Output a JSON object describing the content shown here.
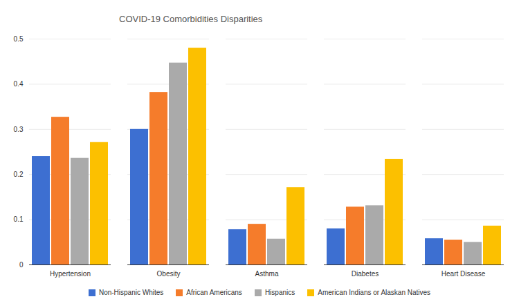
{
  "chart_data": {
    "type": "bar",
    "title": "COVID-19 Comorbidities Disparities",
    "categories": [
      "Hypertension",
      "Obesity",
      "Asthma",
      "Diabetes",
      "Heart Disease"
    ],
    "series": [
      {
        "name": "Non-Hispanic Whites",
        "color": "#3d6fd1",
        "values": [
          0.24,
          0.3,
          0.078,
          0.08,
          0.058
        ]
      },
      {
        "name": "African Americans",
        "color": "#f57c2b",
        "values": [
          0.327,
          0.382,
          0.09,
          0.128,
          0.055
        ]
      },
      {
        "name": "Hispanics",
        "color": "#aaaaaa",
        "values": [
          0.236,
          0.447,
          0.057,
          0.131,
          0.05
        ]
      },
      {
        "name": "American Indians or Alaskan Natives",
        "color": "#fcc000",
        "values": [
          0.271,
          0.48,
          0.171,
          0.234,
          0.086
        ]
      }
    ],
    "ylim": [
      0,
      0.5
    ],
    "yticks": [
      0,
      0.1,
      0.2,
      0.3,
      0.4,
      0.5
    ],
    "grid": true,
    "legend": "bottom"
  }
}
